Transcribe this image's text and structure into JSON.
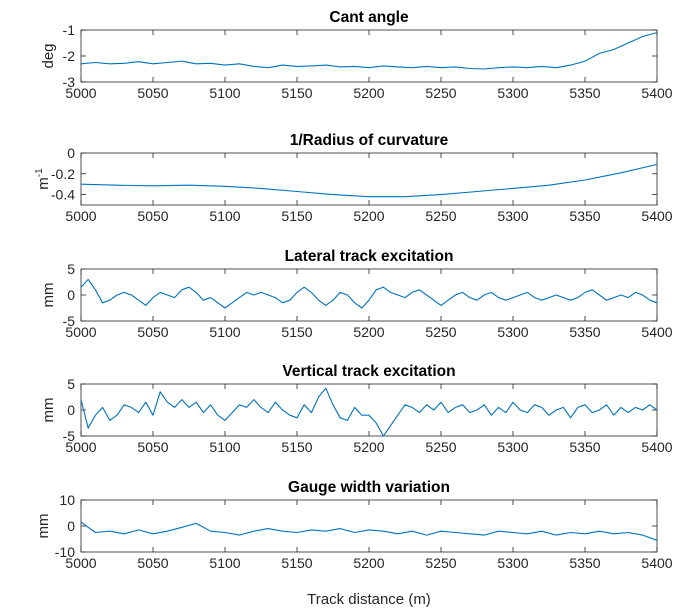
{
  "figure": {
    "xlabel": "Track distance (m)",
    "line_color": "#0072bd",
    "axes_color": "#262626",
    "background": "#ffffff"
  },
  "chart_data": [
    {
      "type": "line",
      "title": "Cant angle",
      "ylabel": "deg",
      "ylabel_sup": "",
      "xlim": [
        5000,
        5400
      ],
      "ylim": [
        -3,
        -1
      ],
      "xticks": [
        5000,
        5050,
        5100,
        5150,
        5200,
        5250,
        5300,
        5350,
        5400
      ],
      "yticks": [
        -3,
        -2,
        -1
      ],
      "xticklabels": [
        "5000",
        "5050",
        "5100",
        "5150",
        "5200",
        "5250",
        "5300",
        "5350",
        "5400"
      ],
      "yticklabels": [
        "-3",
        "-2",
        "-1"
      ],
      "series": [
        {
          "x": [
            5000,
            5010,
            5020,
            5030,
            5040,
            5050,
            5060,
            5070,
            5080,
            5090,
            5100,
            5110,
            5120,
            5130,
            5140,
            5150,
            5160,
            5170,
            5180,
            5190,
            5200,
            5210,
            5220,
            5230,
            5240,
            5250,
            5260,
            5270,
            5280,
            5290,
            5300,
            5310,
            5320,
            5330,
            5340,
            5350,
            5360,
            5370,
            5380,
            5390,
            5400
          ],
          "y": [
            -2.3,
            -2.25,
            -2.3,
            -2.28,
            -2.22,
            -2.3,
            -2.25,
            -2.2,
            -2.3,
            -2.28,
            -2.35,
            -2.3,
            -2.4,
            -2.45,
            -2.35,
            -2.4,
            -2.38,
            -2.35,
            -2.42,
            -2.4,
            -2.45,
            -2.38,
            -2.42,
            -2.45,
            -2.4,
            -2.45,
            -2.42,
            -2.48,
            -2.5,
            -2.45,
            -2.42,
            -2.45,
            -2.4,
            -2.45,
            -2.35,
            -2.2,
            -1.9,
            -1.75,
            -1.5,
            -1.25,
            -1.1
          ]
        }
      ]
    },
    {
      "type": "line",
      "title": "1/Radius of curvature",
      "ylabel": "m",
      "ylabel_sup": "-1",
      "xlim": [
        5000,
        5400
      ],
      "ylim": [
        -0.5,
        0
      ],
      "xticks": [
        5000,
        5050,
        5100,
        5150,
        5200,
        5250,
        5300,
        5350,
        5400
      ],
      "yticks": [
        -0.4,
        -0.2,
        0
      ],
      "xticklabels": [
        "5000",
        "5050",
        "5100",
        "5150",
        "5200",
        "5250",
        "5300",
        "5350",
        "5400"
      ],
      "yticklabels": [
        "-0.4",
        "-0.2",
        "0"
      ],
      "series": [
        {
          "x": [
            5000,
            5025,
            5050,
            5075,
            5100,
            5125,
            5150,
            5175,
            5200,
            5225,
            5250,
            5275,
            5300,
            5325,
            5350,
            5375,
            5400
          ],
          "y": [
            -0.3,
            -0.31,
            -0.315,
            -0.31,
            -0.32,
            -0.34,
            -0.37,
            -0.4,
            -0.42,
            -0.42,
            -0.4,
            -0.37,
            -0.34,
            -0.31,
            -0.26,
            -0.19,
            -0.11
          ]
        }
      ]
    },
    {
      "type": "line",
      "title": "Lateral track excitation",
      "ylabel": "mm",
      "ylabel_sup": "",
      "xlim": [
        5000,
        5400
      ],
      "ylim": [
        -5,
        5
      ],
      "xticks": [
        5000,
        5050,
        5100,
        5150,
        5200,
        5250,
        5300,
        5350,
        5400
      ],
      "yticks": [
        -5,
        0,
        5
      ],
      "xticklabels": [
        "5000",
        "5050",
        "5100",
        "5150",
        "5200",
        "5250",
        "5300",
        "5350",
        "5400"
      ],
      "yticklabels": [
        "-5",
        "0",
        "5"
      ],
      "series": [
        {
          "x": [
            5000,
            5005,
            5010,
            5015,
            5020,
            5025,
            5030,
            5035,
            5040,
            5045,
            5050,
            5055,
            5060,
            5065,
            5070,
            5075,
            5080,
            5085,
            5090,
            5095,
            5100,
            5105,
            5110,
            5115,
            5120,
            5125,
            5130,
            5135,
            5140,
            5145,
            5150,
            5155,
            5160,
            5165,
            5170,
            5175,
            5180,
            5185,
            5190,
            5195,
            5200,
            5205,
            5210,
            5215,
            5220,
            5225,
            5230,
            5235,
            5240,
            5245,
            5250,
            5255,
            5260,
            5265,
            5270,
            5275,
            5280,
            5285,
            5290,
            5295,
            5300,
            5305,
            5310,
            5315,
            5320,
            5325,
            5330,
            5335,
            5340,
            5345,
            5350,
            5355,
            5360,
            5365,
            5370,
            5375,
            5380,
            5385,
            5390,
            5395,
            5400
          ],
          "y": [
            1.5,
            3,
            1,
            -1.5,
            -1,
            0,
            0.5,
            0,
            -1,
            -2,
            -0.5,
            0.5,
            0,
            -0.5,
            1,
            1.5,
            0.5,
            -1,
            -0.5,
            -1.5,
            -2.5,
            -1.5,
            -0.5,
            0.5,
            0,
            0.5,
            0,
            -0.5,
            -1.5,
            -1,
            0.5,
            1.5,
            0.5,
            -1,
            -2,
            -1,
            0.5,
            0,
            -1.5,
            -2.5,
            -1,
            1,
            1.5,
            0.5,
            0,
            -0.5,
            0.5,
            1,
            0,
            -1,
            -2,
            -1,
            0,
            0.5,
            -0.5,
            -1,
            0,
            0.5,
            -0.5,
            -1,
            -0.5,
            0,
            0.5,
            -0.5,
            -1,
            -0.5,
            0,
            -0.5,
            -1,
            -0.5,
            0.5,
            1,
            0,
            -1,
            -0.5,
            0,
            -0.5,
            0.5,
            0,
            -1,
            -1.5
          ]
        }
      ]
    },
    {
      "type": "line",
      "title": "Vertical track excitation",
      "ylabel": "mm",
      "ylabel_sup": "",
      "xlim": [
        5000,
        5400
      ],
      "ylim": [
        -5,
        5
      ],
      "xticks": [
        5000,
        5050,
        5100,
        5150,
        5200,
        5250,
        5300,
        5350,
        5400
      ],
      "yticks": [
        -5,
        0,
        5
      ],
      "xticklabels": [
        "5000",
        "5050",
        "5100",
        "5150",
        "5200",
        "5250",
        "5300",
        "5350",
        "5400"
      ],
      "yticklabels": [
        "-5",
        "0",
        "5"
      ],
      "series": [
        {
          "x": [
            5000,
            5005,
            5010,
            5015,
            5020,
            5025,
            5030,
            5035,
            5040,
            5045,
            5050,
            5055,
            5060,
            5065,
            5070,
            5075,
            5080,
            5085,
            5090,
            5095,
            5100,
            5105,
            5110,
            5115,
            5120,
            5125,
            5130,
            5135,
            5140,
            5145,
            5150,
            5155,
            5160,
            5165,
            5170,
            5175,
            5180,
            5185,
            5190,
            5195,
            5200,
            5205,
            5210,
            5215,
            5220,
            5225,
            5230,
            5235,
            5240,
            5245,
            5250,
            5255,
            5260,
            5265,
            5270,
            5275,
            5280,
            5285,
            5290,
            5295,
            5300,
            5305,
            5310,
            5315,
            5320,
            5325,
            5330,
            5335,
            5340,
            5345,
            5350,
            5355,
            5360,
            5365,
            5370,
            5375,
            5380,
            5385,
            5390,
            5395,
            5400
          ],
          "y": [
            2,
            -3.5,
            -1,
            0.5,
            -2,
            -1,
            1,
            0.5,
            -0.5,
            1.5,
            -1,
            3.5,
            1.5,
            0.5,
            2,
            0.5,
            1.5,
            -0.5,
            1,
            -1,
            -2,
            -0.5,
            1,
            0.5,
            2,
            0.5,
            -0.5,
            1.5,
            0,
            -1,
            -1.5,
            1,
            -0.5,
            2.5,
            4.2,
            1,
            -1.5,
            -2,
            0.5,
            -1,
            -1,
            -2.5,
            -5,
            -3,
            -1,
            1,
            0.5,
            -0.5,
            1,
            0,
            1.5,
            -0.5,
            0.5,
            1,
            -0.5,
            0,
            1,
            -1,
            0.5,
            -0.5,
            1.5,
            0,
            -0.5,
            1,
            0.5,
            -1,
            0,
            0.5,
            -1.5,
            0.5,
            1,
            -0.5,
            0,
            1,
            -1,
            0.5,
            -0.5,
            0.5,
            0,
            1,
            0
          ]
        }
      ]
    },
    {
      "type": "line",
      "title": "Gauge width variation",
      "ylabel": "mm",
      "ylabel_sup": "",
      "xlim": [
        5000,
        5400
      ],
      "ylim": [
        -10,
        10
      ],
      "xticks": [
        5000,
        5050,
        5100,
        5150,
        5200,
        5250,
        5300,
        5350,
        5400
      ],
      "yticks": [
        -10,
        0,
        10
      ],
      "xticklabels": [
        "5000",
        "5050",
        "5100",
        "5150",
        "5200",
        "5250",
        "5300",
        "5350",
        "5400"
      ],
      "yticklabels": [
        "-10",
        "0",
        "10"
      ],
      "series": [
        {
          "x": [
            5000,
            5010,
            5020,
            5030,
            5040,
            5050,
            5060,
            5070,
            5080,
            5090,
            5100,
            5110,
            5120,
            5130,
            5140,
            5150,
            5160,
            5170,
            5180,
            5190,
            5200,
            5210,
            5220,
            5230,
            5240,
            5250,
            5260,
            5270,
            5280,
            5290,
            5300,
            5310,
            5320,
            5330,
            5340,
            5350,
            5360,
            5370,
            5380,
            5390,
            5400
          ],
          "y": [
            1.5,
            -2.5,
            -2,
            -3,
            -1.5,
            -3,
            -2,
            -0.5,
            1,
            -2,
            -2.5,
            -3.5,
            -2,
            -1,
            -2,
            -2.5,
            -1.5,
            -2,
            -1,
            -2.5,
            -1.5,
            -2,
            -3,
            -2,
            -3.5,
            -2,
            -2.5,
            -3,
            -3.5,
            -2,
            -2.5,
            -3,
            -2,
            -3.5,
            -2.5,
            -3,
            -2,
            -3,
            -2.5,
            -3.5,
            -5.5
          ]
        }
      ]
    }
  ]
}
